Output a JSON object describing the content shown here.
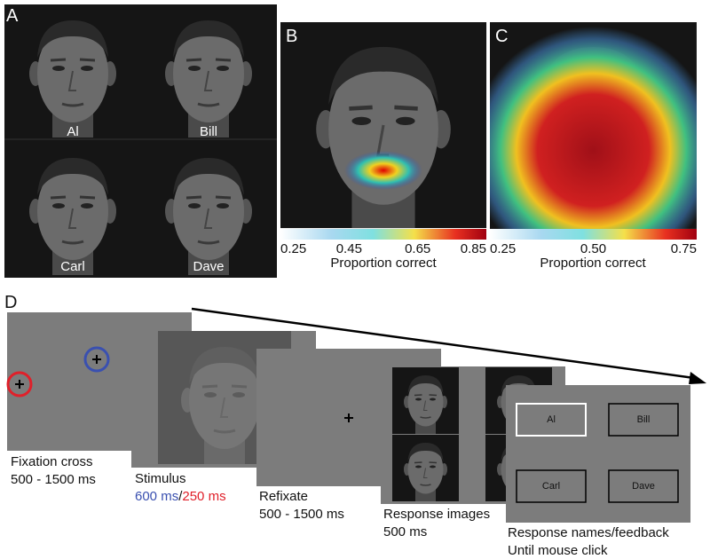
{
  "panels": {
    "A": {
      "label": "A",
      "names": [
        "Al",
        "Bill",
        "Carl",
        "Dave"
      ]
    },
    "B": {
      "label": "B",
      "colorbar_ticks": [
        "0.25",
        "0.45",
        "0.65",
        "0.85"
      ],
      "colorbar_title": "Proportion correct"
    },
    "C": {
      "label": "C",
      "colorbar_ticks": [
        "0.25",
        "0.50",
        "0.75"
      ],
      "colorbar_title": "Proportion correct"
    },
    "D": {
      "label": "D",
      "steps": [
        {
          "label": "Fixation cross",
          "duration": "500 - 1500 ms"
        },
        {
          "label": "Stimulus",
          "duration_parts": [
            "600 ms",
            "/",
            "250 ms"
          ]
        },
        {
          "label": "Refixate",
          "duration": "500 - 1500 ms"
        },
        {
          "label": "Response images",
          "duration": "500 ms"
        },
        {
          "label": "Response names/feedback",
          "duration": "Until mouse click"
        }
      ],
      "buttons": [
        "Al",
        "Bill",
        "Carl",
        "Dave"
      ]
    }
  }
}
